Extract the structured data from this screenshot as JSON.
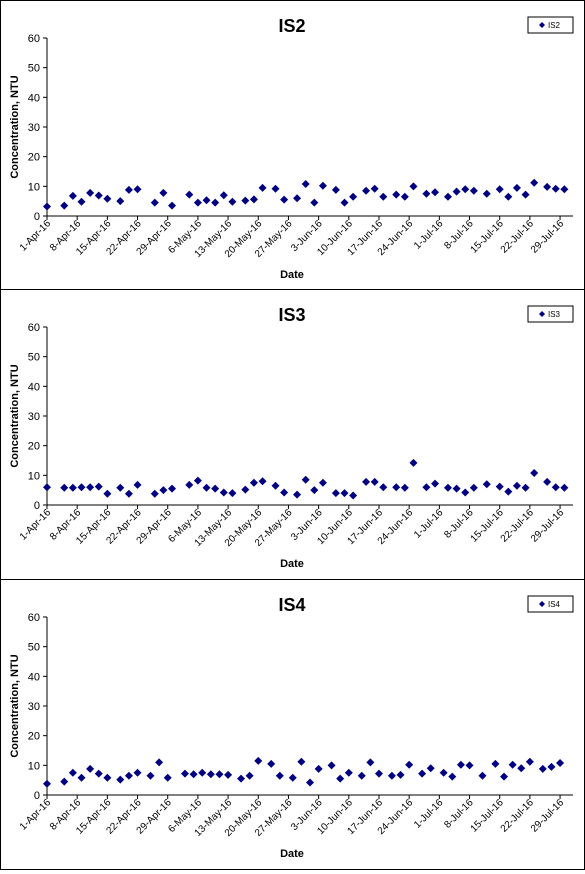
{
  "chart_data": [
    {
      "type": "scatter",
      "title": "IS2",
      "xlabel": "Date",
      "ylabel": "Concentration, NTU",
      "ylim": [
        0,
        60
      ],
      "yticks": [
        0,
        10,
        20,
        30,
        40,
        50,
        60
      ],
      "xlim": [
        "1-Apr-16",
        "1-Aug-16"
      ],
      "xticks": [
        "1-Apr-16",
        "8-Apr-16",
        "15-Apr-16",
        "22-Apr-16",
        "29-Apr-16",
        "6-May-16",
        "13-May-16",
        "20-May-16",
        "27-May-16",
        "3-Jun-16",
        "10-Jun-16",
        "17-Jun-16",
        "24-Jun-16",
        "1-Jul-16",
        "8-Jul-16",
        "15-Jul-16",
        "22-Jul-16",
        "29-Jul-16"
      ],
      "grid": false,
      "legend_position": "top-right",
      "marker": "diamond",
      "series": [
        {
          "name": "IS2",
          "color": "#000080",
          "points": [
            [
              "1-Apr-16",
              3.2
            ],
            [
              "5-Apr-16",
              3.5
            ],
            [
              "7-Apr-16",
              6.8
            ],
            [
              "9-Apr-16",
              4.8
            ],
            [
              "11-Apr-16",
              7.8
            ],
            [
              "13-Apr-16",
              6.9
            ],
            [
              "15-Apr-16",
              5.8
            ],
            [
              "18-Apr-16",
              5.0
            ],
            [
              "20-Apr-16",
              8.8
            ],
            [
              "22-Apr-16",
              9.0
            ],
            [
              "26-Apr-16",
              4.5
            ],
            [
              "28-Apr-16",
              7.8
            ],
            [
              "30-Apr-16",
              3.5
            ],
            [
              "4-May-16",
              7.2
            ],
            [
              "6-May-16",
              4.5
            ],
            [
              "8-May-16",
              5.3
            ],
            [
              "10-May-16",
              4.5
            ],
            [
              "12-May-16",
              7.0
            ],
            [
              "14-May-16",
              4.8
            ],
            [
              "17-May-16",
              5.2
            ],
            [
              "19-May-16",
              5.6
            ],
            [
              "21-May-16",
              9.5
            ],
            [
              "24-May-16",
              9.2
            ],
            [
              "26-May-16",
              5.5
            ],
            [
              "29-May-16",
              6.0
            ],
            [
              "31-May-16",
              10.8
            ],
            [
              "2-Jun-16",
              4.5
            ],
            [
              "4-Jun-16",
              10.2
            ],
            [
              "7-Jun-16",
              8.8
            ],
            [
              "9-Jun-16",
              4.5
            ],
            [
              "11-Jun-16",
              6.5
            ],
            [
              "14-Jun-16",
              8.5
            ],
            [
              "16-Jun-16",
              9.2
            ],
            [
              "18-Jun-16",
              6.5
            ],
            [
              "21-Jun-16",
              7.2
            ],
            [
              "23-Jun-16",
              6.5
            ],
            [
              "25-Jun-16",
              10.0
            ],
            [
              "28-Jun-16",
              7.5
            ],
            [
              "30-Jun-16",
              8.0
            ],
            [
              "3-Jul-16",
              6.5
            ],
            [
              "5-Jul-16",
              8.2
            ],
            [
              "7-Jul-16",
              9.0
            ],
            [
              "9-Jul-16",
              8.5
            ],
            [
              "12-Jul-16",
              7.5
            ],
            [
              "15-Jul-16",
              9.0
            ],
            [
              "17-Jul-16",
              6.5
            ],
            [
              "19-Jul-16",
              9.5
            ],
            [
              "21-Jul-16",
              7.2
            ],
            [
              "23-Jul-16",
              11.2
            ],
            [
              "26-Jul-16",
              9.8
            ],
            [
              "28-Jul-16",
              9.2
            ],
            [
              "30-Jul-16",
              9.0
            ]
          ]
        }
      ]
    },
    {
      "type": "scatter",
      "title": "IS3",
      "xlabel": "Date",
      "ylabel": "Concentration, NTU",
      "ylim": [
        0,
        60
      ],
      "yticks": [
        0,
        10,
        20,
        30,
        40,
        50,
        60
      ],
      "xlim": [
        "1-Apr-16",
        "1-Aug-16"
      ],
      "xticks": [
        "1-Apr-16",
        "8-Apr-16",
        "15-Apr-16",
        "22-Apr-16",
        "29-Apr-16",
        "6-May-16",
        "13-May-16",
        "20-May-16",
        "27-May-16",
        "3-Jun-16",
        "10-Jun-16",
        "17-Jun-16",
        "24-Jun-16",
        "1-Jul-16",
        "8-Jul-16",
        "15-Jul-16",
        "22-Jul-16",
        "29-Jul-16"
      ],
      "grid": false,
      "legend_position": "top-right",
      "marker": "diamond",
      "series": [
        {
          "name": "IS3",
          "color": "#000080",
          "points": [
            [
              "1-Apr-16",
              6.0
            ],
            [
              "5-Apr-16",
              5.8
            ],
            [
              "7-Apr-16",
              5.8
            ],
            [
              "9-Apr-16",
              6.0
            ],
            [
              "11-Apr-16",
              6.0
            ],
            [
              "13-Apr-16",
              6.2
            ],
            [
              "15-Apr-16",
              3.8
            ],
            [
              "18-Apr-16",
              5.8
            ],
            [
              "20-Apr-16",
              3.8
            ],
            [
              "22-Apr-16",
              6.8
            ],
            [
              "26-Apr-16",
              3.8
            ],
            [
              "28-Apr-16",
              5.0
            ],
            [
              "30-Apr-16",
              5.5
            ],
            [
              "4-May-16",
              6.8
            ],
            [
              "6-May-16",
              8.2
            ],
            [
              "8-May-16",
              5.8
            ],
            [
              "10-May-16",
              5.5
            ],
            [
              "12-May-16",
              4.2
            ],
            [
              "14-May-16",
              4.0
            ],
            [
              "17-May-16",
              5.2
            ],
            [
              "19-May-16",
              7.5
            ],
            [
              "21-May-16",
              8.0
            ],
            [
              "24-May-16",
              6.5
            ],
            [
              "26-May-16",
              4.2
            ],
            [
              "29-May-16",
              3.5
            ],
            [
              "31-May-16",
              8.5
            ],
            [
              "2-Jun-16",
              5.0
            ],
            [
              "4-Jun-16",
              7.5
            ],
            [
              "7-Jun-16",
              4.0
            ],
            [
              "9-Jun-16",
              4.0
            ],
            [
              "11-Jun-16",
              3.2
            ],
            [
              "14-Jun-16",
              7.8
            ],
            [
              "16-Jun-16",
              7.8
            ],
            [
              "18-Jun-16",
              6.0
            ],
            [
              "21-Jun-16",
              6.0
            ],
            [
              "23-Jun-16",
              5.8
            ],
            [
              "25-Jun-16",
              14.2
            ],
            [
              "28-Jun-16",
              6.0
            ],
            [
              "30-Jun-16",
              7.2
            ],
            [
              "3-Jul-16",
              5.8
            ],
            [
              "5-Jul-16",
              5.5
            ],
            [
              "7-Jul-16",
              4.2
            ],
            [
              "9-Jul-16",
              5.8
            ],
            [
              "12-Jul-16",
              7.0
            ],
            [
              "15-Jul-16",
              6.2
            ],
            [
              "17-Jul-16",
              4.5
            ],
            [
              "19-Jul-16",
              6.5
            ],
            [
              "21-Jul-16",
              5.8
            ],
            [
              "23-Jul-16",
              10.8
            ],
            [
              "26-Jul-16",
              7.8
            ],
            [
              "28-Jul-16",
              6.0
            ],
            [
              "30-Jul-16",
              5.8
            ]
          ]
        }
      ]
    },
    {
      "type": "scatter",
      "title": "IS4",
      "xlabel": "Date",
      "ylabel": "Concentration, NTU",
      "ylim": [
        0,
        60
      ],
      "yticks": [
        0,
        10,
        20,
        30,
        40,
        50,
        60
      ],
      "xlim": [
        "1-Apr-16",
        "1-Aug-16"
      ],
      "xticks": [
        "1-Apr-16",
        "8-Apr-16",
        "15-Apr-16",
        "22-Apr-16",
        "29-Apr-16",
        "6-May-16",
        "13-May-16",
        "20-May-16",
        "27-May-16",
        "3-Jun-16",
        "10-Jun-16",
        "17-Jun-16",
        "24-Jun-16",
        "1-Jul-16",
        "8-Jul-16",
        "15-Jul-16",
        "22-Jul-16",
        "29-Jul-16"
      ],
      "grid": false,
      "legend_position": "top-right",
      "marker": "diamond",
      "series": [
        {
          "name": "IS4",
          "color": "#000080",
          "points": [
            [
              "1-Apr-16",
              3.8
            ],
            [
              "5-Apr-16",
              4.5
            ],
            [
              "7-Apr-16",
              7.5
            ],
            [
              "9-Apr-16",
              5.8
            ],
            [
              "11-Apr-16",
              8.8
            ],
            [
              "13-Apr-16",
              7.2
            ],
            [
              "15-Apr-16",
              5.8
            ],
            [
              "18-Apr-16",
              5.2
            ],
            [
              "20-Apr-16",
              6.5
            ],
            [
              "22-Apr-16",
              7.5
            ],
            [
              "25-Apr-16",
              6.5
            ],
            [
              "27-Apr-16",
              11.0
            ],
            [
              "29-Apr-16",
              5.8
            ],
            [
              "3-May-16",
              7.2
            ],
            [
              "5-May-16",
              7.0
            ],
            [
              "7-May-16",
              7.5
            ],
            [
              "9-May-16",
              7.0
            ],
            [
              "11-May-16",
              7.0
            ],
            [
              "13-May-16",
              6.8
            ],
            [
              "16-May-16",
              5.5
            ],
            [
              "18-May-16",
              6.5
            ],
            [
              "20-May-16",
              11.5
            ],
            [
              "23-May-16",
              10.5
            ],
            [
              "25-May-16",
              6.5
            ],
            [
              "28-May-16",
              5.8
            ],
            [
              "30-May-16",
              11.2
            ],
            [
              "1-Jun-16",
              4.2
            ],
            [
              "3-Jun-16",
              8.8
            ],
            [
              "6-Jun-16",
              10.0
            ],
            [
              "8-Jun-16",
              5.5
            ],
            [
              "10-Jun-16",
              7.5
            ],
            [
              "13-Jun-16",
              6.5
            ],
            [
              "15-Jun-16",
              11.0
            ],
            [
              "17-Jun-16",
              7.2
            ],
            [
              "20-Jun-16",
              6.5
            ],
            [
              "22-Jun-16",
              6.8
            ],
            [
              "24-Jun-16",
              10.2
            ],
            [
              "27-Jun-16",
              7.2
            ],
            [
              "29-Jun-16",
              9.0
            ],
            [
              "2-Jul-16",
              7.5
            ],
            [
              "4-Jul-16",
              6.2
            ],
            [
              "6-Jul-16",
              10.2
            ],
            [
              "8-Jul-16",
              10.0
            ],
            [
              "11-Jul-16",
              6.5
            ],
            [
              "14-Jul-16",
              10.5
            ],
            [
              "16-Jul-16",
              6.2
            ],
            [
              "18-Jul-16",
              10.2
            ],
            [
              "20-Jul-16",
              9.0
            ],
            [
              "22-Jul-16",
              11.2
            ],
            [
              "25-Jul-16",
              8.8
            ],
            [
              "27-Jul-16",
              9.5
            ],
            [
              "29-Jul-16",
              10.8
            ]
          ]
        }
      ]
    }
  ]
}
